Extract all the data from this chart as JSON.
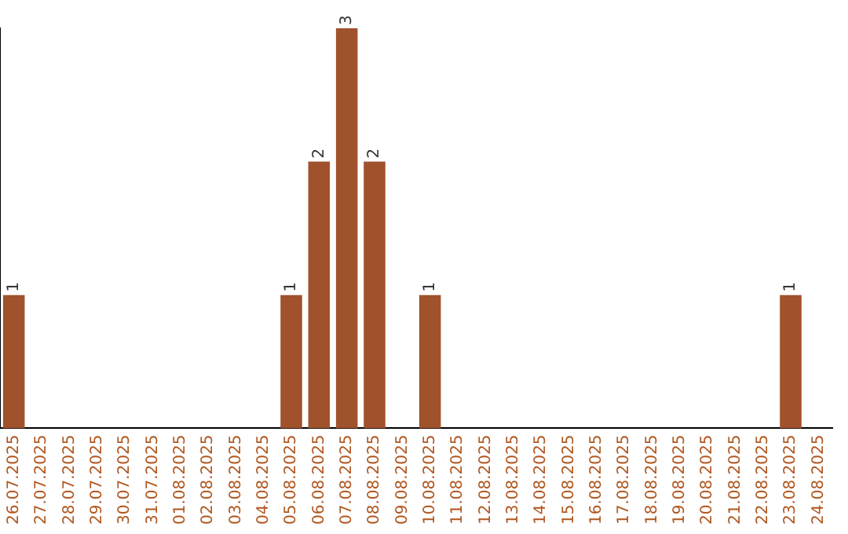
{
  "chart_data": {
    "type": "bar",
    "categories": [
      "26.07.2025",
      "27.07.2025",
      "28.07.2025",
      "29.07.2025",
      "30.07.2025",
      "31.07.2025",
      "01.08.2025",
      "02.08.2025",
      "03.08.2025",
      "04.08.2025",
      "05.08.2025",
      "06.08.2025",
      "07.08.2025",
      "08.08.2025",
      "09.08.2025",
      "10.08.2025",
      "11.08.2025",
      "12.08.2025",
      "13.08.2025",
      "14.08.2025",
      "15.08.2025",
      "16.08.2025",
      "17.08.2025",
      "18.08.2025",
      "19.08.2025",
      "20.08.2025",
      "21.08.2025",
      "22.08.2025",
      "23.08.2025",
      "24.08.2025"
    ],
    "values": [
      1,
      0,
      0,
      0,
      0,
      0,
      0,
      0,
      0,
      0,
      1,
      2,
      3,
      2,
      0,
      1,
      0,
      0,
      0,
      0,
      0,
      0,
      0,
      0,
      0,
      0,
      0,
      0,
      1,
      0
    ],
    "value_labels": [
      "1",
      null,
      null,
      null,
      null,
      null,
      null,
      null,
      null,
      null,
      "1",
      "2",
      "3",
      "2",
      null,
      "1",
      null,
      null,
      null,
      null,
      null,
      null,
      null,
      null,
      null,
      null,
      null,
      null,
      "1",
      null
    ],
    "color": "#a0522d",
    "ylim": [
      0,
      3
    ],
    "tick_labels": "x",
    "grid": false,
    "legend": false
  }
}
